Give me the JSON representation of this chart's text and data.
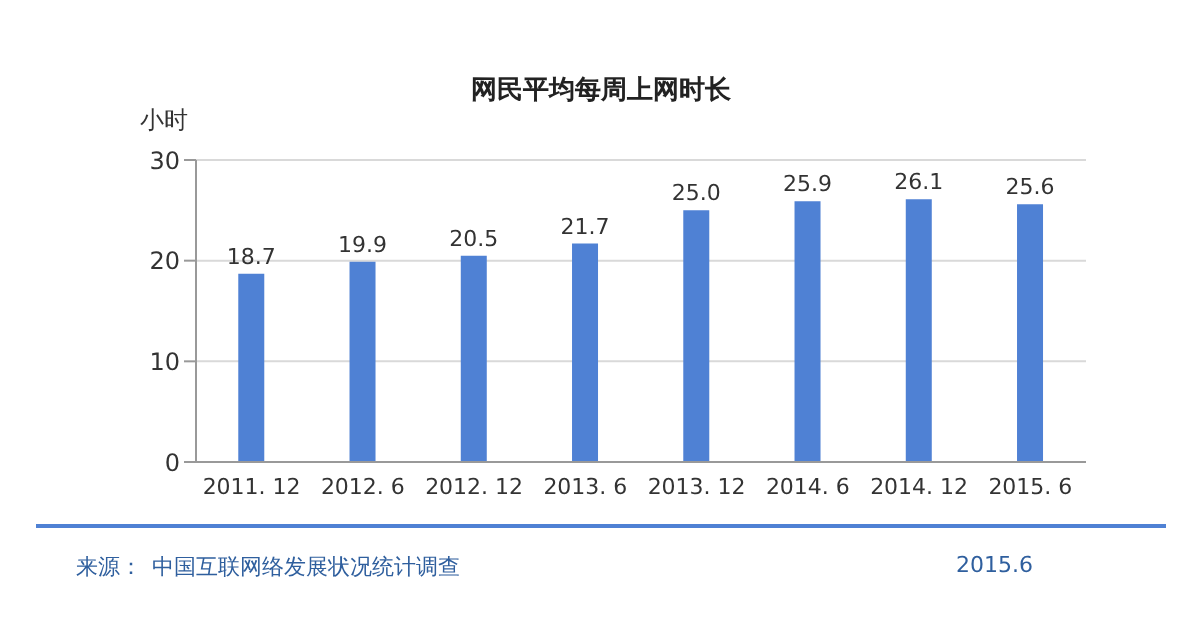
{
  "chart_data": {
    "type": "bar",
    "title": "网民平均每周上网时长",
    "ylabel": "小时",
    "categories": [
      "2011. 12",
      "2012. 6",
      "2012. 12",
      "2013. 6",
      "2013. 12",
      "2014. 6",
      "2014. 12",
      "2015. 6"
    ],
    "values": [
      18.7,
      19.9,
      20.5,
      21.7,
      25.0,
      25.9,
      26.1,
      25.6
    ],
    "value_labels": [
      "18.7",
      "19.9",
      "20.5",
      "21.7",
      "25.0",
      "25.9",
      "26.1",
      "25.6"
    ],
    "color": "#4f81d4",
    "ylim": [
      0,
      30
    ],
    "yticks": [
      0,
      10,
      20,
      30
    ],
    "grid": "y",
    "annotations": [
      "来源：",
      "中国互联网络发展状况统计调查",
      "2015.6"
    ]
  }
}
